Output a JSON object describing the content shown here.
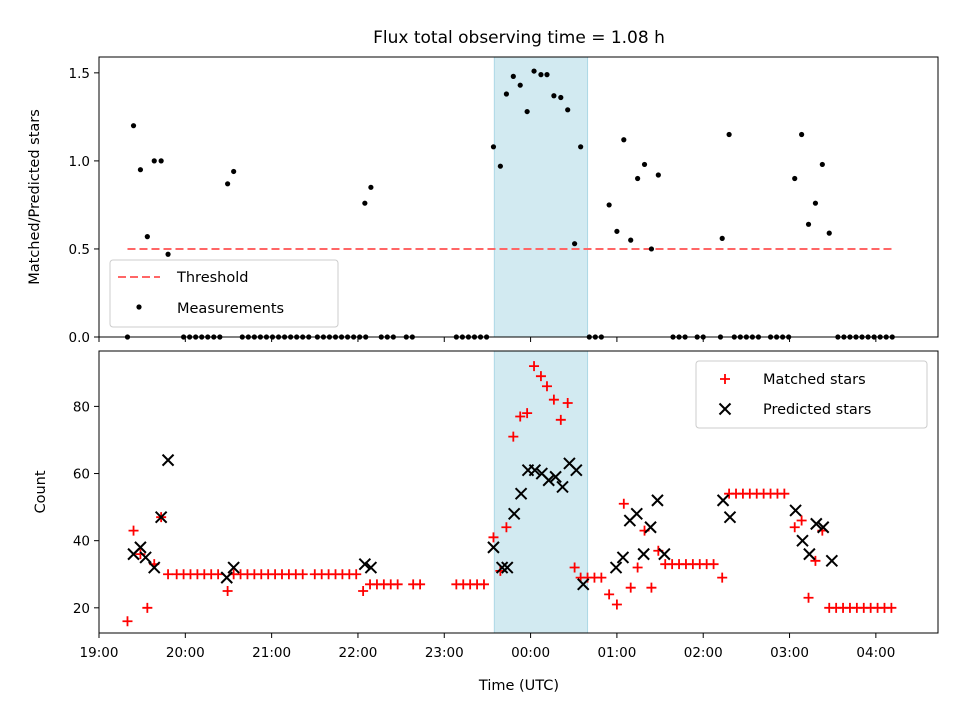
{
  "chart_data": [
    {
      "type": "scatter",
      "title": "Flux total observing time = 1.08 h",
      "xlabel": "",
      "ylabel": "Matched/Predicted stars",
      "xlim": [
        -5.0,
        4.72
      ],
      "ylim": [
        0.0,
        1.59
      ],
      "yticks": [
        "0.0",
        "0.5",
        "1.0",
        "1.5"
      ],
      "grid": false,
      "legend_position": "lower-left",
      "highlight_span": [
        -0.42,
        0.66
      ],
      "highlight_color": "#add8e6",
      "threshold": {
        "name": "Threshold",
        "value": 0.5,
        "x_start": -4.67,
        "x_end": 4.21,
        "color": "#ff6666"
      },
      "series": [
        {
          "name": "Measurements",
          "color": "#000000",
          "points": [
            [
              -4.67,
              0.0
            ],
            [
              -4.6,
              1.2
            ],
            [
              -4.52,
              0.95
            ],
            [
              -4.44,
              0.57
            ],
            [
              -4.36,
              1.0
            ],
            [
              -4.28,
              1.0
            ],
            [
              -4.2,
              0.47
            ],
            [
              -4.02,
              0.0
            ],
            [
              -3.95,
              0.0
            ],
            [
              -3.88,
              0.0
            ],
            [
              -3.81,
              0.0
            ],
            [
              -3.74,
              0.0
            ],
            [
              -3.67,
              0.0
            ],
            [
              -3.6,
              0.0
            ],
            [
              -3.51,
              0.87
            ],
            [
              -3.44,
              0.94
            ],
            [
              -3.34,
              0.0
            ],
            [
              -3.27,
              0.0
            ],
            [
              -3.2,
              0.0
            ],
            [
              -3.13,
              0.0
            ],
            [
              -3.06,
              0.0
            ],
            [
              -2.99,
              0.0
            ],
            [
              -2.92,
              0.0
            ],
            [
              -2.85,
              0.0
            ],
            [
              -2.78,
              0.0
            ],
            [
              -2.71,
              0.0
            ],
            [
              -2.64,
              0.0
            ],
            [
              -2.57,
              0.0
            ],
            [
              -2.47,
              0.0
            ],
            [
              -2.4,
              0.0
            ],
            [
              -2.33,
              0.0
            ],
            [
              -2.26,
              0.0
            ],
            [
              -2.19,
              0.0
            ],
            [
              -2.12,
              0.0
            ],
            [
              -2.05,
              0.0
            ],
            [
              -1.98,
              0.0
            ],
            [
              -1.91,
              0.0
            ],
            [
              -1.92,
              0.76
            ],
            [
              -1.85,
              0.85
            ],
            [
              -1.73,
              0.0
            ],
            [
              -1.66,
              0.0
            ],
            [
              -1.59,
              0.0
            ],
            [
              -1.44,
              0.0
            ],
            [
              -1.37,
              0.0
            ],
            [
              -0.86,
              0.0
            ],
            [
              -0.79,
              0.0
            ],
            [
              -0.72,
              0.0
            ],
            [
              -0.65,
              0.0
            ],
            [
              -0.58,
              0.0
            ],
            [
              -0.51,
              0.0
            ],
            [
              -0.43,
              1.08
            ],
            [
              -0.35,
              0.97
            ],
            [
              -0.28,
              1.38
            ],
            [
              -0.2,
              1.48
            ],
            [
              -0.12,
              1.43
            ],
            [
              -0.04,
              1.28
            ],
            [
              0.04,
              1.51
            ],
            [
              0.12,
              1.49
            ],
            [
              0.19,
              1.49
            ],
            [
              0.27,
              1.37
            ],
            [
              0.35,
              1.36
            ],
            [
              0.43,
              1.29
            ],
            [
              0.51,
              0.53
            ],
            [
              0.58,
              1.08
            ],
            [
              0.68,
              0.0
            ],
            [
              0.75,
              0.0
            ],
            [
              0.82,
              0.0
            ],
            [
              0.91,
              0.75
            ],
            [
              1.0,
              0.6
            ],
            [
              1.08,
              1.12
            ],
            [
              1.16,
              0.55
            ],
            [
              1.24,
              0.9
            ],
            [
              1.32,
              0.98
            ],
            [
              1.4,
              0.5
            ],
            [
              1.48,
              0.92
            ],
            [
              1.65,
              0.0
            ],
            [
              1.72,
              0.0
            ],
            [
              1.79,
              0.0
            ],
            [
              1.93,
              0.0
            ],
            [
              2.0,
              0.0
            ],
            [
              2.2,
              0.0
            ],
            [
              2.22,
              0.56
            ],
            [
              2.3,
              1.15
            ],
            [
              2.36,
              0.0
            ],
            [
              2.43,
              0.0
            ],
            [
              2.5,
              0.0
            ],
            [
              2.57,
              0.0
            ],
            [
              2.64,
              0.0
            ],
            [
              2.78,
              0.0
            ],
            [
              2.85,
              0.0
            ],
            [
              2.92,
              0.0
            ],
            [
              2.99,
              0.0
            ],
            [
              3.06,
              0.9
            ],
            [
              3.14,
              1.15
            ],
            [
              3.22,
              0.64
            ],
            [
              3.3,
              0.76
            ],
            [
              3.38,
              0.98
            ],
            [
              3.46,
              0.59
            ],
            [
              3.56,
              0.0
            ],
            [
              3.63,
              0.0
            ],
            [
              3.7,
              0.0
            ],
            [
              3.77,
              0.0
            ],
            [
              3.84,
              0.0
            ],
            [
              3.91,
              0.0
            ],
            [
              3.98,
              0.0
            ],
            [
              4.05,
              0.0
            ],
            [
              4.12,
              0.0
            ],
            [
              4.19,
              0.0
            ]
          ]
        }
      ]
    },
    {
      "type": "scatter",
      "title": "",
      "xlabel": "Time (UTC)",
      "ylabel": "Count",
      "xlim": [
        -5.0,
        4.72
      ],
      "ylim": [
        12.5,
        96.5
      ],
      "xticks": [
        -5,
        -4,
        -3,
        -2,
        -1,
        0,
        1,
        2,
        3,
        4
      ],
      "xtick_labels": [
        "19:00",
        "20:00",
        "21:00",
        "22:00",
        "23:00",
        "00:00",
        "01:00",
        "02:00",
        "03:00",
        "04:00"
      ],
      "yticks": [
        "20",
        "40",
        "60",
        "80"
      ],
      "grid": false,
      "legend_position": "top-right",
      "highlight_span": [
        -0.42,
        0.66
      ],
      "highlight_color": "#add8e6",
      "series": [
        {
          "name": "Matched stars",
          "marker": "+",
          "color": "#ff0000",
          "points": [
            [
              -4.67,
              16
            ],
            [
              -4.6,
              43
            ],
            [
              -4.52,
              36
            ],
            [
              -4.44,
              20
            ],
            [
              -4.36,
              33
            ],
            [
              -4.28,
              47
            ],
            [
              -4.2,
              30
            ],
            [
              -4.1,
              30
            ],
            [
              -4.02,
              30
            ],
            [
              -3.94,
              30
            ],
            [
              -3.86,
              30
            ],
            [
              -3.78,
              30
            ],
            [
              -3.7,
              30
            ],
            [
              -3.62,
              30
            ],
            [
              -3.51,
              25
            ],
            [
              -3.44,
              30
            ],
            [
              -3.36,
              30
            ],
            [
              -3.28,
              30
            ],
            [
              -3.2,
              30
            ],
            [
              -3.12,
              30
            ],
            [
              -3.04,
              30
            ],
            [
              -2.96,
              30
            ],
            [
              -2.88,
              30
            ],
            [
              -2.8,
              30
            ],
            [
              -2.72,
              30
            ],
            [
              -2.64,
              30
            ],
            [
              -2.5,
              30
            ],
            [
              -2.42,
              30
            ],
            [
              -2.34,
              30
            ],
            [
              -2.26,
              30
            ],
            [
              -2.18,
              30
            ],
            [
              -2.1,
              30
            ],
            [
              -2.02,
              30
            ],
            [
              -1.94,
              25
            ],
            [
              -1.86,
              27
            ],
            [
              -1.78,
              27
            ],
            [
              -1.7,
              27
            ],
            [
              -1.62,
              27
            ],
            [
              -1.54,
              27
            ],
            [
              -1.36,
              27
            ],
            [
              -1.28,
              27
            ],
            [
              -0.86,
              27
            ],
            [
              -0.78,
              27
            ],
            [
              -0.7,
              27
            ],
            [
              -0.62,
              27
            ],
            [
              -0.54,
              27
            ],
            [
              -0.43,
              41
            ],
            [
              -0.35,
              31
            ],
            [
              -0.28,
              44
            ],
            [
              -0.2,
              71
            ],
            [
              -0.12,
              77
            ],
            [
              -0.04,
              78
            ],
            [
              0.04,
              92
            ],
            [
              0.12,
              89
            ],
            [
              0.19,
              86
            ],
            [
              0.27,
              82
            ],
            [
              0.35,
              76
            ],
            [
              0.43,
              81
            ],
            [
              0.51,
              32
            ],
            [
              0.58,
              29
            ],
            [
              0.66,
              29
            ],
            [
              0.74,
              29
            ],
            [
              0.82,
              29
            ],
            [
              0.91,
              24
            ],
            [
              1.0,
              21
            ],
            [
              1.08,
              51
            ],
            [
              1.16,
              26
            ],
            [
              1.24,
              32
            ],
            [
              1.32,
              43
            ],
            [
              1.4,
              26
            ],
            [
              1.48,
              37
            ],
            [
              1.56,
              33
            ],
            [
              1.64,
              33
            ],
            [
              1.72,
              33
            ],
            [
              1.8,
              33
            ],
            [
              1.88,
              33
            ],
            [
              1.96,
              33
            ],
            [
              2.04,
              33
            ],
            [
              2.12,
              33
            ],
            [
              2.22,
              29
            ],
            [
              2.3,
              54
            ],
            [
              2.38,
              54
            ],
            [
              2.46,
              54
            ],
            [
              2.54,
              54
            ],
            [
              2.62,
              54
            ],
            [
              2.7,
              54
            ],
            [
              2.78,
              54
            ],
            [
              2.86,
              54
            ],
            [
              2.94,
              54
            ],
            [
              3.06,
              44
            ],
            [
              3.14,
              46
            ],
            [
              3.22,
              23
            ],
            [
              3.3,
              34
            ],
            [
              3.38,
              43
            ],
            [
              3.46,
              20
            ],
            [
              3.54,
              20
            ],
            [
              3.62,
              20
            ],
            [
              3.7,
              20
            ],
            [
              3.78,
              20
            ],
            [
              3.86,
              20
            ],
            [
              3.94,
              20
            ],
            [
              4.02,
              20
            ],
            [
              4.1,
              20
            ],
            [
              4.18,
              20
            ]
          ]
        },
        {
          "name": "Predicted stars",
          "marker": "x",
          "color": "#000000",
          "points": [
            [
              -4.6,
              36
            ],
            [
              -4.52,
              38
            ],
            [
              -4.46,
              35
            ],
            [
              -4.36,
              32
            ],
            [
              -4.28,
              47
            ],
            [
              -4.2,
              64
            ],
            [
              -3.52,
              29
            ],
            [
              -3.44,
              32
            ],
            [
              -1.92,
              33
            ],
            [
              -1.85,
              32
            ],
            [
              -0.43,
              38
            ],
            [
              -0.33,
              32
            ],
            [
              -0.27,
              32
            ],
            [
              -0.19,
              48
            ],
            [
              -0.11,
              54
            ],
            [
              -0.03,
              61
            ],
            [
              0.05,
              61
            ],
            [
              0.13,
              60
            ],
            [
              0.21,
              58
            ],
            [
              0.29,
              59
            ],
            [
              0.37,
              56
            ],
            [
              0.45,
              63
            ],
            [
              0.53,
              61
            ],
            [
              0.61,
              27
            ],
            [
              0.99,
              32
            ],
            [
              1.07,
              35
            ],
            [
              1.15,
              46
            ],
            [
              1.23,
              48
            ],
            [
              1.31,
              36
            ],
            [
              1.39,
              44
            ],
            [
              1.47,
              52
            ],
            [
              1.55,
              36
            ],
            [
              2.23,
              52
            ],
            [
              2.31,
              47
            ],
            [
              3.07,
              49
            ],
            [
              3.15,
              40
            ],
            [
              3.23,
              36
            ],
            [
              3.31,
              45
            ],
            [
              3.39,
              44
            ],
            [
              3.49,
              34
            ]
          ]
        }
      ]
    }
  ]
}
